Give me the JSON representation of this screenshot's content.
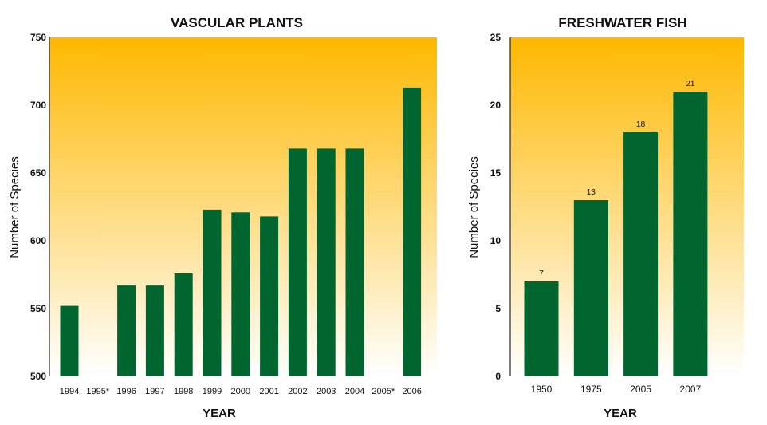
{
  "colors": {
    "bar": "#00652e",
    "gradient_top": "#ffb800",
    "gradient_bottom": "#ffffff",
    "axis": "#000000"
  },
  "chart_data": [
    {
      "type": "bar",
      "title": "VASCULAR PLANTS",
      "xlabel": "YEAR",
      "ylabel": "Number of Species",
      "ylim": [
        500,
        750
      ],
      "yticks": [
        500,
        550,
        600,
        650,
        700,
        750
      ],
      "categories": [
        "1994",
        "1995*",
        "1996",
        "1997",
        "1998",
        "1999",
        "2000",
        "2001",
        "2002",
        "2003",
        "2004",
        "2005*",
        "2006"
      ],
      "values": [
        552,
        null,
        567,
        567,
        576,
        623,
        621,
        618,
        668,
        668,
        668,
        null,
        713
      ],
      "grid": false
    },
    {
      "type": "bar",
      "title": "FRESHWATER FISH",
      "xlabel": "YEAR",
      "ylabel": "Number of Species",
      "ylim": [
        0,
        25
      ],
      "yticks": [
        0,
        5,
        10,
        15,
        20,
        25
      ],
      "categories": [
        "1950",
        "1975",
        "2005",
        "2007"
      ],
      "values": [
        7,
        13,
        18,
        21
      ],
      "data_labels": [
        "7",
        "13",
        "18",
        "21"
      ],
      "grid": false
    }
  ]
}
